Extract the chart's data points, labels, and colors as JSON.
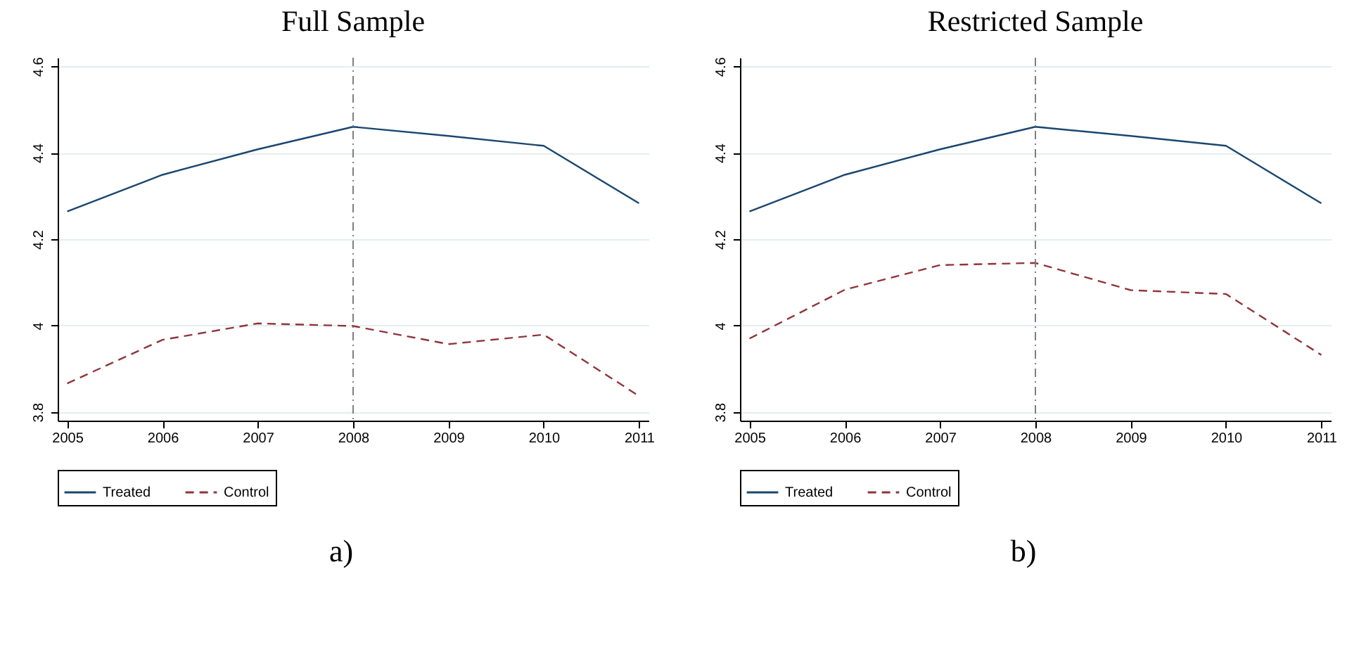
{
  "chart_data": [
    {
      "type": "line",
      "title": "Full Sample",
      "x": [
        2005,
        2006,
        2007,
        2008,
        2009,
        2010,
        2011
      ],
      "xlim": [
        2004.9,
        2011.1
      ],
      "xticks": [
        2005,
        2006,
        2007,
        2008,
        2009,
        2010,
        2011
      ],
      "ylim": [
        3.78,
        4.62
      ],
      "yticks": [
        3.8,
        {
          "value": 4,
          "label": "4"
        },
        4.2,
        4.4,
        4.6
      ],
      "grid": "y",
      "legend": "bottom",
      "annotations": [
        "a)"
      ],
      "ref_lines": [
        {
          "axis": "x",
          "value": 2008,
          "color": "#7f7f7f",
          "line_style": "dashdot"
        }
      ],
      "series": [
        {
          "name": "Treated",
          "color": "#1a476f",
          "line_style": "solid",
          "values": [
            4.264,
            4.349,
            4.408,
            4.46,
            4.439,
            4.416,
            4.283
          ]
        },
        {
          "name": "Control",
          "color": "#90353b",
          "line_style": "dashed",
          "values": [
            3.866,
            3.967,
            4.005,
            3.999,
            3.957,
            3.979,
            3.837
          ]
        }
      ]
    },
    {
      "type": "line",
      "title": "Restricted Sample",
      "x": [
        2005,
        2006,
        2007,
        2008,
        2009,
        2010,
        2011
      ],
      "xlim": [
        2004.9,
        2011.1
      ],
      "xticks": [
        2005,
        2006,
        2007,
        2008,
        2009,
        2010,
        2011
      ],
      "ylim": [
        3.78,
        4.62
      ],
      "yticks": [
        3.8,
        {
          "value": 4,
          "label": "4"
        },
        4.2,
        4.4,
        4.6
      ],
      "grid": "y",
      "legend": "bottom",
      "annotations": [
        "b)"
      ],
      "ref_lines": [
        {
          "axis": "x",
          "value": 2008,
          "color": "#7f7f7f",
          "line_style": "dashdot"
        }
      ],
      "series": [
        {
          "name": "Treated",
          "color": "#1a476f",
          "line_style": "solid",
          "values": [
            4.264,
            4.349,
            4.408,
            4.46,
            4.439,
            4.416,
            4.283
          ]
        },
        {
          "name": "Control",
          "color": "#90353b",
          "line_style": "dashed",
          "values": [
            3.97,
            4.083,
            4.14,
            4.145,
            4.082,
            4.073,
            3.932
          ]
        }
      ]
    }
  ]
}
